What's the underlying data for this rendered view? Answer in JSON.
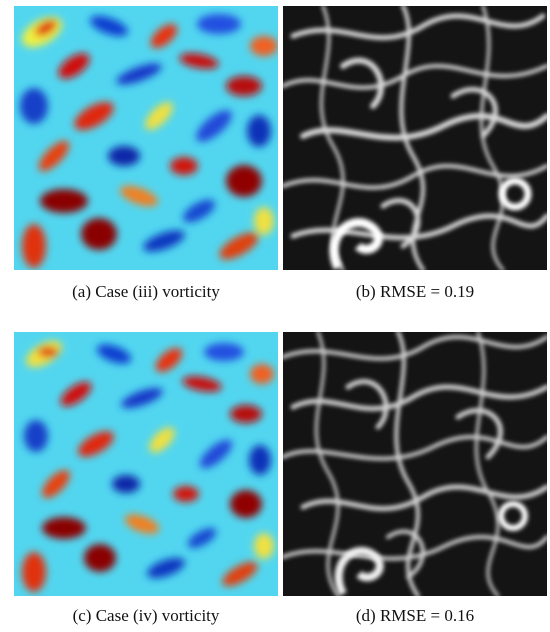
{
  "figure": {
    "panels": [
      {
        "id": "a",
        "caption": "(a) Case (iii) vorticity",
        "kind": "vorticity-colormap",
        "colormap": "jet"
      },
      {
        "id": "b",
        "caption": "(b) RMSE = 0.19",
        "kind": "error-magnitude-grayscale",
        "rmse": 0.19
      },
      {
        "id": "c",
        "caption": "(c) Case (iv) vorticity",
        "kind": "vorticity-colormap",
        "colormap": "jet"
      },
      {
        "id": "d",
        "caption": "(d) RMSE = 0.16",
        "kind": "error-magnitude-grayscale",
        "rmse": 0.16
      }
    ]
  },
  "colors": {
    "jet_low": "#00008f",
    "jet_mid": "#37e6ff",
    "jet_high": "#8f0000",
    "gray_low": "#000000",
    "gray_high": "#ffffff"
  }
}
